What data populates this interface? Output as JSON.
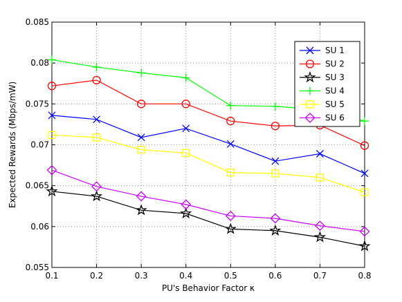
{
  "chart_data": {
    "type": "line",
    "title": "",
    "xlabel": "PU's Behavior Factor κ",
    "ylabel": "Expected Rewards (Mbps/mW)",
    "xlim": [
      0.1,
      0.8
    ],
    "ylim": [
      0.055,
      0.085
    ],
    "x_ticks": [
      "0.1",
      "0.2",
      "0.3",
      "0.4",
      "0.5",
      "0.6",
      "0.7",
      "0.8"
    ],
    "y_ticks": [
      "0.055",
      "0.06",
      "0.065",
      "0.07",
      "0.075",
      "0.08",
      "0.085"
    ],
    "grid": true,
    "legend_position": "top-right",
    "x": [
      0.1,
      0.2,
      0.3,
      0.4,
      0.5,
      0.6,
      0.7,
      0.8
    ],
    "series": [
      {
        "name": "SU 1",
        "color": "#0000ff",
        "marker": "x",
        "values": [
          0.0736,
          0.0731,
          0.0709,
          0.072,
          0.0701,
          0.068,
          0.0689,
          0.0665
        ]
      },
      {
        "name": "SU 2",
        "color": "#ff0000",
        "marker": "circle",
        "values": [
          0.0772,
          0.0779,
          0.075,
          0.075,
          0.0729,
          0.0723,
          0.0724,
          0.0699
        ]
      },
      {
        "name": "SU 3",
        "color": "#000000",
        "marker": "star",
        "values": [
          0.0643,
          0.0637,
          0.062,
          0.0616,
          0.0597,
          0.0595,
          0.0587,
          0.0576
        ]
      },
      {
        "name": "SU 4",
        "color": "#00ff00",
        "marker": "plus",
        "values": [
          0.0804,
          0.0795,
          0.0788,
          0.0782,
          0.0748,
          0.0747,
          0.0743,
          0.0729
        ]
      },
      {
        "name": "SU 5",
        "color": "#ffff00",
        "marker": "square",
        "values": [
          0.0712,
          0.0709,
          0.0694,
          0.069,
          0.0666,
          0.0665,
          0.066,
          0.0642
        ]
      },
      {
        "name": "SU 6",
        "color": "#cc00ff",
        "marker": "diamond",
        "values": [
          0.0669,
          0.0649,
          0.0637,
          0.0627,
          0.0613,
          0.061,
          0.0601,
          0.0594
        ]
      }
    ]
  }
}
